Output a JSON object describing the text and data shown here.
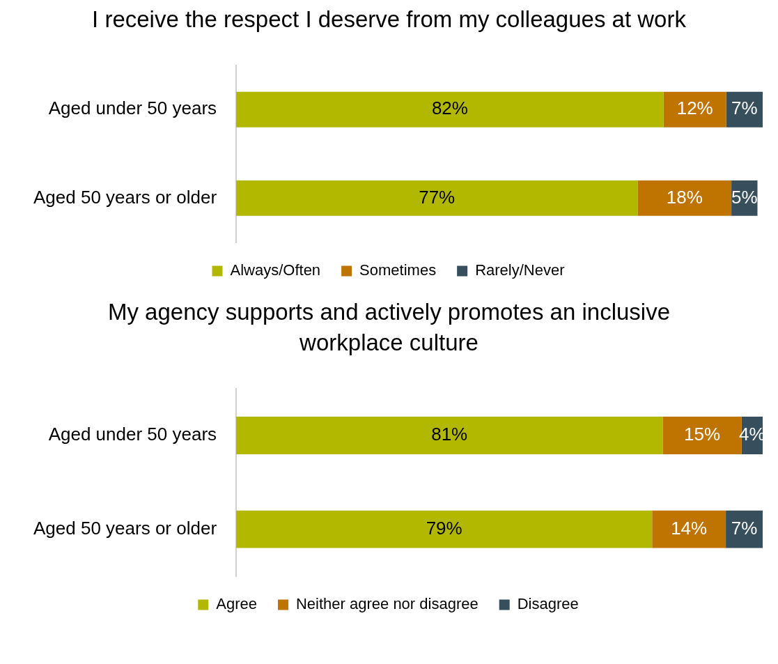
{
  "chart_data": [
    {
      "type": "bar",
      "orientation": "horizontal",
      "stacked": true,
      "title": "I receive the respect I deserve from my colleagues at work",
      "categories": [
        "Aged under 50 years",
        "Aged 50 years or older"
      ],
      "series": [
        {
          "name": "Always/Often",
          "color": "#b2b800",
          "values": [
            82,
            77
          ],
          "value_labels": [
            "82%",
            "77%"
          ]
        },
        {
          "name": "Sometimes",
          "color": "#bf7300",
          "values": [
            12,
            18
          ],
          "value_labels": [
            "12%",
            "18%"
          ]
        },
        {
          "name": "Rarely/Never",
          "color": "#374e5c",
          "values": [
            7,
            5
          ],
          "value_labels": [
            "7%",
            "5%"
          ]
        }
      ],
      "legend": "bottom",
      "grid": false,
      "tick_labels": "y"
    },
    {
      "type": "bar",
      "orientation": "horizontal",
      "stacked": true,
      "title": "My agency supports and actively promotes an inclusive workplace culture",
      "categories": [
        "Aged under 50 years",
        "Aged 50 years or older"
      ],
      "series": [
        {
          "name": "Agree",
          "color": "#b2b800",
          "values": [
            81,
            79
          ],
          "value_labels": [
            "81%",
            "79%"
          ]
        },
        {
          "name": "Neither agree nor disagree",
          "color": "#bf7300",
          "values": [
            15,
            14
          ],
          "value_labels": [
            "15%",
            "14%"
          ]
        },
        {
          "name": "Disagree",
          "color": "#374e5c",
          "values": [
            4,
            7
          ],
          "value_labels": [
            "4%",
            "7%"
          ]
        }
      ],
      "legend": "bottom",
      "grid": false,
      "tick_labels": "y"
    }
  ]
}
